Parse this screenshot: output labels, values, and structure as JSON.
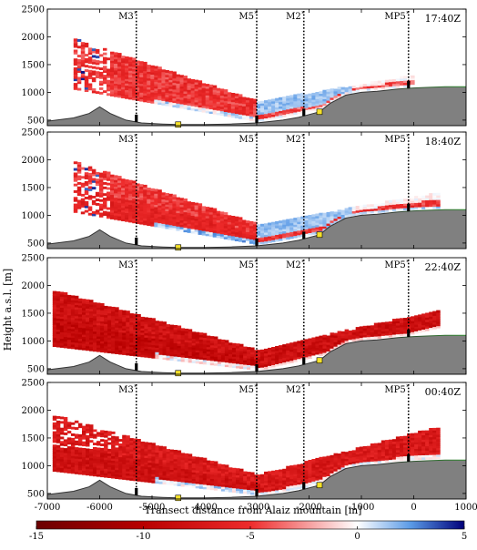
{
  "chart_data": {
    "type": "heatmap",
    "xlabel": "Transect distance from Alaiz mountain [m]",
    "ylabel": "Height a.s.l. [m]",
    "xlim": [
      -7000,
      1000
    ],
    "x_ticks": [
      -7000,
      -6000,
      -5000,
      -4000,
      -3000,
      -2000,
      -1000,
      0,
      1000
    ],
    "x_tick_labels": [
      "-7000",
      "-6000",
      "-5000",
      "-4000",
      "-3000",
      "-2000",
      "-1000",
      "0",
      "1000"
    ],
    "ylim": [
      400,
      2500
    ],
    "y_ticks": [
      500,
      1000,
      1500,
      2000,
      2500
    ],
    "y_tick_labels": [
      "500",
      "1000",
      "1500",
      "2000",
      "2500"
    ],
    "masts": [
      {
        "label": "M3",
        "x": -5300
      },
      {
        "label": "M5",
        "x": -3000
      },
      {
        "label": "M2",
        "x": -2100
      },
      {
        "label": "MP5",
        "x": -100
      }
    ],
    "terrain": {
      "x": [
        -7000,
        -6500,
        -6200,
        -6000,
        -5800,
        -5500,
        -5200,
        -4800,
        -4500,
        -4000,
        -3500,
        -3000,
        -2500,
        -2200,
        -2000,
        -1800,
        -1600,
        -1300,
        -1000,
        -700,
        -300,
        0,
        300,
        600,
        1000
      ],
      "elevation": [
        480,
        540,
        620,
        740,
        620,
        500,
        450,
        430,
        420,
        420,
        430,
        450,
        500,
        550,
        600,
        650,
        800,
        950,
        1000,
        1020,
        1060,
        1080,
        1090,
        1100,
        1100
      ]
    },
    "colorbar": {
      "label": "",
      "min": -15,
      "max": 5,
      "ticks": [
        -15,
        -10,
        -5,
        0,
        5
      ],
      "tick_labels": [
        "-15",
        "-10",
        "-5",
        "0",
        "5"
      ],
      "colors": [
        "#6b0000",
        "#b80000",
        "#ee2b2b",
        "#ffffff",
        "#5a9ae6",
        "#00007a"
      ]
    },
    "panels": [
      {
        "time": "17:40Z",
        "near_mast_field": -5,
        "upper_field": -5,
        "lowest_field": -1
      },
      {
        "time": "18:40Z",
        "near_mast_field": -6,
        "upper_field": -5,
        "lowest_field": 0
      },
      {
        "time": "22:40Z",
        "near_mast_field": -9,
        "upper_field": -8,
        "lowest_field": -2
      },
      {
        "time": "00:40Z",
        "near_mast_field": -8,
        "upper_field": -7,
        "lowest_field": -1
      }
    ]
  }
}
